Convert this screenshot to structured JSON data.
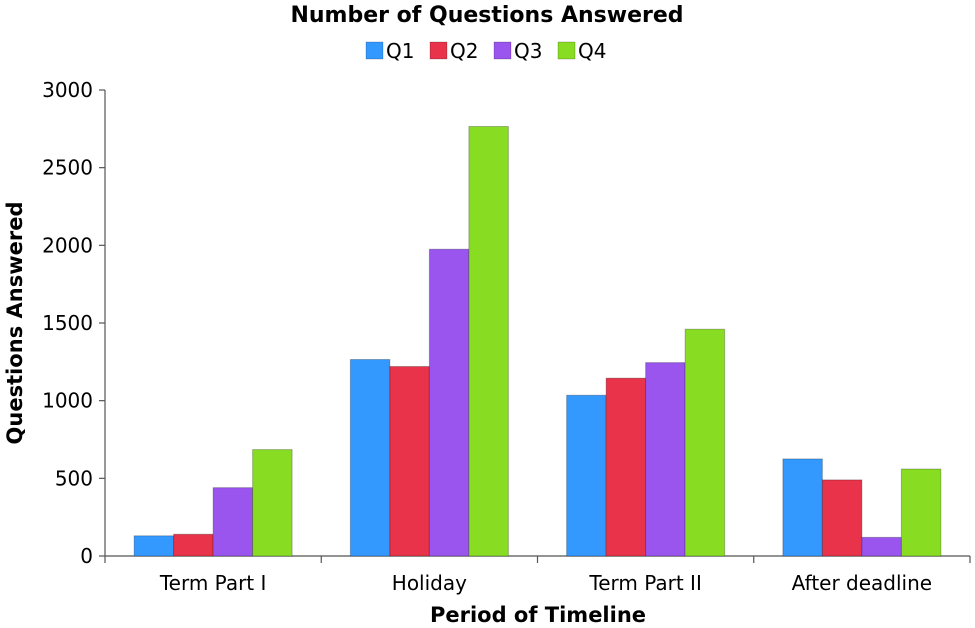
{
  "chart_data": {
    "type": "bar",
    "title": "Number of Questions Answered",
    "xlabel": "Period of Timeline",
    "ylabel": "Questions Answered",
    "categories": [
      "Term Part I",
      "Holiday",
      "Term Part II",
      "After deadline"
    ],
    "ylim": [
      0,
      3000
    ],
    "yticks": [
      0,
      500,
      1000,
      1500,
      2000,
      2500,
      3000
    ],
    "grid": false,
    "legend_position": "top",
    "series": [
      {
        "name": "Q1",
        "color": "#3399ff",
        "values": [
          130,
          1265,
          1035,
          625
        ]
      },
      {
        "name": "Q2",
        "color": "#e8334a",
        "values": [
          140,
          1220,
          1145,
          490
        ]
      },
      {
        "name": "Q3",
        "color": "#9955ee",
        "values": [
          440,
          1975,
          1245,
          120
        ]
      },
      {
        "name": "Q4",
        "color": "#88dd22",
        "values": [
          685,
          2765,
          1460,
          560
        ]
      }
    ]
  }
}
